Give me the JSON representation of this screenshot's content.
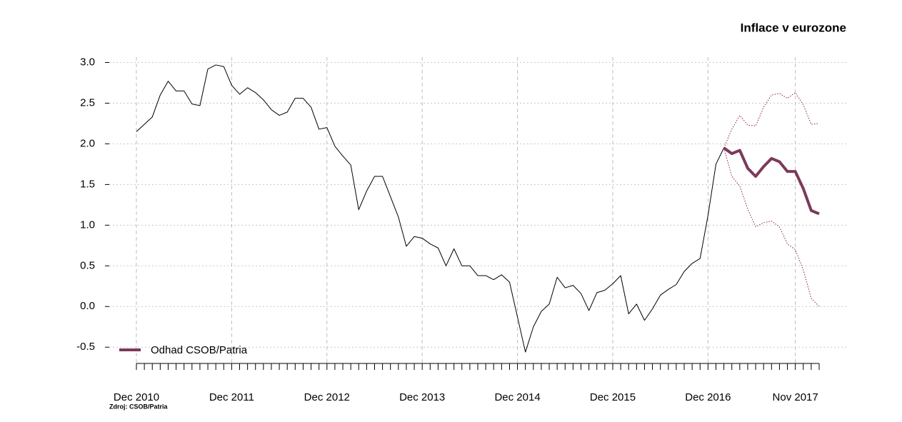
{
  "chart_data": {
    "type": "line",
    "title": "Inflace v eurozone",
    "source": "Zdroj: CSOB/Patria",
    "categories": [
      "Dec 2010",
      null,
      null,
      null,
      null,
      null,
      null,
      null,
      null,
      null,
      null,
      null,
      "Dec 2011",
      null,
      null,
      null,
      null,
      null,
      null,
      null,
      null,
      null,
      null,
      null,
      "Dec 2012",
      null,
      null,
      null,
      null,
      null,
      null,
      null,
      null,
      null,
      null,
      null,
      "Dec 2013",
      null,
      null,
      null,
      null,
      null,
      null,
      null,
      null,
      null,
      null,
      null,
      "Dec 2014",
      null,
      null,
      null,
      null,
      null,
      null,
      null,
      null,
      null,
      null,
      null,
      "Dec 2015",
      null,
      null,
      null,
      null,
      null,
      null,
      null,
      null,
      null,
      null,
      null,
      "Dec 2016",
      null,
      null,
      null,
      null,
      null,
      null,
      null,
      null,
      null,
      null,
      "Nov 2017",
      null,
      null,
      null
    ],
    "series": [
      {
        "color": "#000000",
        "width": 1,
        "style": "solid",
        "values": [
          2.15,
          2.24,
          2.33,
          2.6,
          2.77,
          2.65,
          2.65,
          2.49,
          2.47,
          2.92,
          2.97,
          2.95,
          2.72,
          2.61,
          2.69,
          2.63,
          2.54,
          2.42,
          2.35,
          2.39,
          2.56,
          2.56,
          2.45,
          2.18,
          2.2,
          1.97,
          1.85,
          1.74,
          1.19,
          1.42,
          1.6,
          1.6,
          1.35,
          1.1,
          0.74,
          0.86,
          0.84,
          0.77,
          0.72,
          0.5,
          0.71,
          0.5,
          0.5,
          0.38,
          0.38,
          0.33,
          0.39,
          0.3,
          -0.13,
          -0.56,
          -0.25,
          -0.06,
          0.03,
          0.36,
          0.23,
          0.26,
          0.16,
          -0.05,
          0.17,
          0.2,
          0.28,
          0.38,
          -0.09,
          0.03,
          -0.17,
          -0.03,
          0.14,
          0.21,
          0.27,
          0.43,
          0.53,
          0.59,
          1.12,
          1.75,
          1.95,
          null,
          null,
          null,
          null,
          null,
          null,
          null,
          null,
          null,
          null,
          null,
          null
        ]
      },
      {
        "color": "#8b2040",
        "width": 1,
        "style": "dotted",
        "values": [
          null,
          null,
          null,
          null,
          null,
          null,
          null,
          null,
          null,
          null,
          null,
          null,
          null,
          null,
          null,
          null,
          null,
          null,
          null,
          null,
          null,
          null,
          null,
          null,
          null,
          null,
          null,
          null,
          null,
          null,
          null,
          null,
          null,
          null,
          null,
          null,
          null,
          null,
          null,
          null,
          null,
          null,
          null,
          null,
          null,
          null,
          null,
          null,
          null,
          null,
          null,
          null,
          null,
          null,
          null,
          null,
          null,
          null,
          null,
          null,
          null,
          null,
          null,
          null,
          null,
          null,
          null,
          null,
          null,
          null,
          null,
          null,
          null,
          null,
          1.95,
          2.18,
          2.35,
          2.23,
          2.22,
          2.45,
          2.6,
          2.62,
          2.56,
          2.63,
          2.48,
          2.24,
          2.25
        ]
      },
      {
        "color": "#8b2040",
        "width": 1,
        "style": "dotted",
        "values": [
          null,
          null,
          null,
          null,
          null,
          null,
          null,
          null,
          null,
          null,
          null,
          null,
          null,
          null,
          null,
          null,
          null,
          null,
          null,
          null,
          null,
          null,
          null,
          null,
          null,
          null,
          null,
          null,
          null,
          null,
          null,
          null,
          null,
          null,
          null,
          null,
          null,
          null,
          null,
          null,
          null,
          null,
          null,
          null,
          null,
          null,
          null,
          null,
          null,
          null,
          null,
          null,
          null,
          null,
          null,
          null,
          null,
          null,
          null,
          null,
          null,
          null,
          null,
          null,
          null,
          null,
          null,
          null,
          null,
          null,
          null,
          null,
          null,
          null,
          1.95,
          1.6,
          1.48,
          1.2,
          0.98,
          1.03,
          1.05,
          0.98,
          0.77,
          0.7,
          0.45,
          0.1,
          0.0
        ]
      },
      {
        "name": "Odhad CSOB/Patria",
        "color": "#7b3a5a",
        "width": 4,
        "style": "solid",
        "values": [
          null,
          null,
          null,
          null,
          null,
          null,
          null,
          null,
          null,
          null,
          null,
          null,
          null,
          null,
          null,
          null,
          null,
          null,
          null,
          null,
          null,
          null,
          null,
          null,
          null,
          null,
          null,
          null,
          null,
          null,
          null,
          null,
          null,
          null,
          null,
          null,
          null,
          null,
          null,
          null,
          null,
          null,
          null,
          null,
          null,
          null,
          null,
          null,
          null,
          null,
          null,
          null,
          null,
          null,
          null,
          null,
          null,
          null,
          null,
          null,
          null,
          null,
          null,
          null,
          null,
          null,
          null,
          null,
          null,
          null,
          null,
          null,
          null,
          null,
          1.95,
          1.88,
          1.92,
          1.7,
          1.6,
          1.72,
          1.82,
          1.78,
          1.66,
          1.66,
          1.45,
          1.18,
          1.14
        ]
      }
    ],
    "ylim": [
      -0.7,
      3.11
    ],
    "yticks": [
      -0.5,
      {
        "value": 0,
        "label": "0.0"
      },
      0.5,
      {
        "value": 1,
        "label": "1.0"
      },
      1.5,
      {
        "value": 2,
        "label": "2.0"
      },
      2.5,
      {
        "value": 3,
        "label": "3.0"
      }
    ],
    "grid": true,
    "legend": "bottomleft"
  }
}
